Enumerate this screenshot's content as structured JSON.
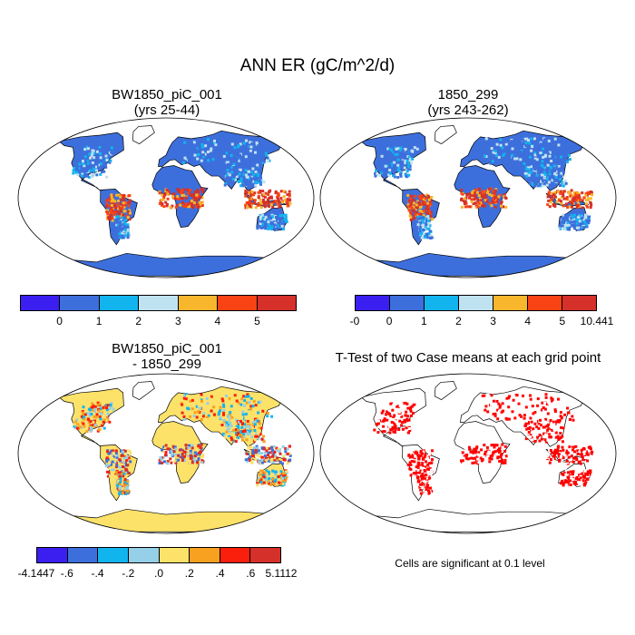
{
  "main_title": "ANN ER (gC/m^2/d)",
  "panels": {
    "tl": {
      "title_line1": "BW1850_piC_001",
      "title_line2": "(yrs 25-44)"
    },
    "tr": {
      "title_line1": "1850_299",
      "title_line2": "(yrs 243-262)"
    },
    "bl": {
      "title_line1": "BW1850_piC_001",
      "title_line2": "- 1850_299"
    },
    "br": {
      "title_line1": "T-Test of two Case means at each grid point",
      "note": "Cells are significant at 0.1 level"
    }
  },
  "colorbars": {
    "tl": {
      "colors": [
        "#3b1ff0",
        "#3d6fdc",
        "#12b4ee",
        "#bfe2f0",
        "#f8b62c",
        "#f94314",
        "#d5302a"
      ],
      "labels": [
        "0",
        "1",
        "2",
        "3",
        "4",
        "5"
      ]
    },
    "tr": {
      "colors": [
        "#3b1ff0",
        "#3d6fdc",
        "#12b4ee",
        "#bfe2f0",
        "#f8b62c",
        "#f94314",
        "#d5302a"
      ],
      "labels": [
        "-0",
        "0",
        "1",
        "2",
        "3",
        "4",
        "5",
        "10.441"
      ]
    },
    "bl": {
      "colors": [
        "#3b1ff0",
        "#3d6fdc",
        "#12b4ee",
        "#95cfe8",
        "#fde26a",
        "#f8a020",
        "#fa1f0c",
        "#d5302a"
      ],
      "labels": [
        "-4.1447",
        "-.6",
        "-.4",
        "-.2",
        ".0",
        ".2",
        ".4",
        ".6",
        "5.1112"
      ]
    }
  },
  "chart_data": [
    {
      "type": "heatmap",
      "title": "BW1850_piC_001 (yrs 25-44)",
      "levels": [
        0,
        1,
        2,
        3,
        4,
        5
      ],
      "colorbar_labels": [
        "0",
        "1",
        "2",
        "3",
        "4",
        "5"
      ]
    },
    {
      "type": "heatmap",
      "title": "1850_299 (yrs 243-262)",
      "levels": [
        0,
        1,
        2,
        3,
        4,
        5
      ],
      "colorbar_labels": [
        "-0",
        "0",
        "1",
        "2",
        "3",
        "4",
        "5",
        "10.441"
      ],
      "min": 0,
      "max": 10.441
    },
    {
      "type": "heatmap",
      "title": "BW1850_piC_001 - 1850_299",
      "levels": [
        -0.6,
        -0.4,
        -0.2,
        0.0,
        0.2,
        0.4,
        0.6
      ],
      "colorbar_labels": [
        "-4.1447",
        "-.6",
        "-.4",
        "-.2",
        ".0",
        ".2",
        ".4",
        ".6",
        "5.1112"
      ],
      "min": -4.1447,
      "max": 5.1112
    },
    {
      "type": "heatmap",
      "title": "T-Test of two Case means at each grid point",
      "annotation": "Cells are significant at 0.1 level"
    }
  ]
}
